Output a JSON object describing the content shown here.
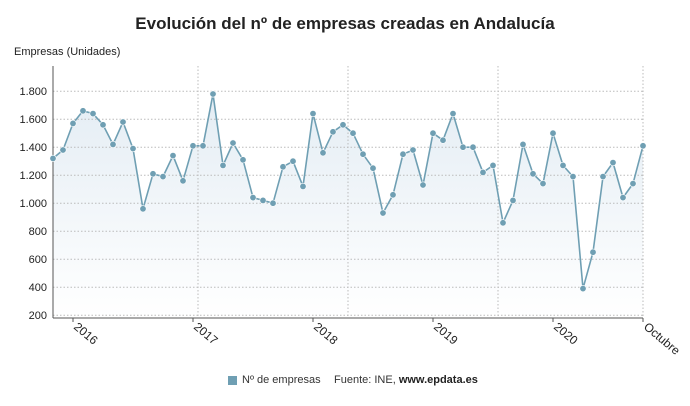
{
  "title": "Evolución del nº de empresas creadas en Andalucía",
  "legend": {
    "label": "Nº de empresas"
  },
  "source": {
    "prefix": "Fuente: INE, ",
    "site": "www.epdata.es"
  },
  "colors": {
    "line": "#6f9fb3",
    "marker": "#6f9fb3",
    "area_top": "#e4edf4",
    "area_bottom": "#ffffff",
    "grid": "#bbbbbb"
  },
  "chart_data": {
    "type": "line",
    "title": "Evolución del nº de empresas creadas en Andalucía",
    "ylabel": "Empresas (Unidades)",
    "xlabel": "",
    "ylim": [
      180,
      1880
    ],
    "yticks": [
      200,
      400,
      600,
      800,
      1000,
      1200,
      1400,
      1600,
      1800
    ],
    "ytick_labels": [
      "200",
      "400",
      "600",
      "800",
      "1.000",
      "1.200",
      "1.400",
      "1.600",
      "1.800"
    ],
    "xtick_labels": [
      "2016",
      "2017",
      "2018",
      "2019",
      "2020",
      "Octubre"
    ],
    "xtick_index": [
      2,
      14,
      26,
      38,
      50,
      59
    ],
    "year_separators_index": [
      -0.5,
      14.5,
      29.5,
      44.5
    ],
    "grid": true,
    "legend_position": "bottom",
    "series": [
      {
        "name": "Nº de empresas",
        "x": [
          "2015-11",
          "2015-12",
          "2016-01",
          "2016-02",
          "2016-03",
          "2016-04",
          "2016-05",
          "2016-06",
          "2016-07",
          "2016-08",
          "2016-09",
          "2016-10",
          "2016-11",
          "2016-12",
          "2017-01",
          "2017-02",
          "2017-03",
          "2017-04",
          "2017-05",
          "2017-06",
          "2017-07",
          "2017-08",
          "2017-09",
          "2017-10",
          "2017-11",
          "2017-12",
          "2018-01",
          "2018-02",
          "2018-03",
          "2018-04",
          "2018-05",
          "2018-06",
          "2018-07",
          "2018-08",
          "2018-09",
          "2018-10",
          "2018-11",
          "2018-12",
          "2019-01",
          "2019-02",
          "2019-03",
          "2019-04",
          "2019-05",
          "2019-06",
          "2019-07",
          "2019-08",
          "2019-09",
          "2019-10",
          "2019-11",
          "2019-12",
          "2020-01",
          "2020-02",
          "2020-03",
          "2020-04",
          "2020-05",
          "2020-06",
          "2020-07",
          "2020-08",
          "2020-09",
          "2020-10"
        ],
        "values": [
          1320,
          1380,
          1570,
          1660,
          1640,
          1560,
          1420,
          1580,
          1390,
          960,
          1210,
          1190,
          1340,
          1160,
          1410,
          1410,
          1780,
          1270,
          1430,
          1310,
          1040,
          1020,
          1000,
          1260,
          1300,
          1120,
          1640,
          1360,
          1510,
          1560,
          1500,
          1350,
          1250,
          930,
          1060,
          1350,
          1380,
          1130,
          1500,
          1450,
          1640,
          1400,
          1400,
          1220,
          1270,
          860,
          1020,
          1420,
          1210,
          1140,
          1500,
          1270,
          1190,
          390,
          650,
          1190,
          1290,
          1040,
          1140,
          1410
        ]
      }
    ]
  }
}
